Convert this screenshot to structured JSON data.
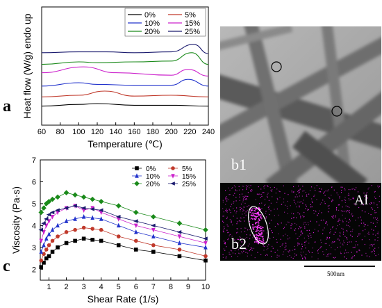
{
  "panels": {
    "a": "a",
    "c": "c",
    "b1": "b1",
    "b2": "b2",
    "al": "Al"
  },
  "scale_bar": "500nm",
  "chart_data": [
    {
      "type": "line",
      "panel": "a",
      "xlabel": "Temperature (℃)",
      "ylabel": "Heat flow (W/g) endo up",
      "xlim": [
        60,
        240
      ],
      "xticks": [
        60,
        80,
        100,
        120,
        140,
        160,
        180,
        200,
        220,
        240
      ],
      "series": [
        {
          "name": "0%",
          "color": "#000000",
          "x": [
            60,
            100,
            120,
            160,
            200,
            240
          ],
          "y": [
            0.2,
            0.4,
            0.5,
            0.3,
            0.3,
            0.2
          ]
        },
        {
          "name": "5%",
          "color": "#c0392b",
          "x": [
            60,
            100,
            128,
            160,
            200,
            240
          ],
          "y": [
            1.3,
            1.5,
            2.0,
            1.4,
            1.5,
            1.3
          ]
        },
        {
          "name": "10%",
          "color": "#2233cc",
          "x": [
            60,
            100,
            120,
            160,
            200,
            218,
            240
          ],
          "y": [
            2.6,
            3.0,
            2.8,
            2.7,
            2.7,
            3.4,
            2.6
          ]
        },
        {
          "name": "15%",
          "color": "#cc22cc",
          "x": [
            60,
            105,
            140,
            200,
            218,
            240
          ],
          "y": [
            4.2,
            4.9,
            4.2,
            3.9,
            4.6,
            3.8
          ]
        },
        {
          "name": "20%",
          "color": "#1a8a1a",
          "x": [
            60,
            100,
            120,
            160,
            200,
            222,
            240
          ],
          "y": [
            5.2,
            5.5,
            5.4,
            5.5,
            5.6,
            6.6,
            5.2
          ]
        },
        {
          "name": "25%",
          "color": "#1a1a6e",
          "x": [
            60,
            100,
            130,
            160,
            200,
            224,
            240
          ],
          "y": [
            6.6,
            6.7,
            6.7,
            6.6,
            6.7,
            7.6,
            6.5
          ]
        }
      ]
    },
    {
      "type": "line",
      "panel": "c",
      "xlabel": "Shear Rate (1/s)",
      "ylabel": "Viscosity (Pa·s)",
      "xlim": [
        0.5,
        10
      ],
      "ylim": [
        1.5,
        7
      ],
      "xticks": [
        1,
        2,
        3,
        4,
        5,
        6,
        7,
        8,
        9,
        10
      ],
      "yticks": [
        2,
        3,
        4,
        5,
        6,
        7
      ],
      "x": [
        0.55,
        0.7,
        0.85,
        1.0,
        1.2,
        1.5,
        2.0,
        2.5,
        3.0,
        3.5,
        4.0,
        5.0,
        6.0,
        7.0,
        8.5,
        10.0
      ],
      "series": [
        {
          "name": "0%",
          "color": "#000000",
          "marker": "square",
          "values": [
            2.1,
            2.3,
            2.5,
            2.6,
            2.8,
            3.0,
            3.2,
            3.3,
            3.4,
            3.35,
            3.3,
            3.1,
            2.9,
            2.8,
            2.6,
            2.4
          ]
        },
        {
          "name": "5%",
          "color": "#c0392b",
          "marker": "circle",
          "values": [
            2.4,
            2.7,
            2.9,
            3.1,
            3.3,
            3.5,
            3.7,
            3.8,
            3.9,
            3.85,
            3.8,
            3.5,
            3.3,
            3.1,
            2.9,
            2.6
          ]
        },
        {
          "name": "10%",
          "color": "#2233cc",
          "marker": "triangle-up",
          "values": [
            2.8,
            3.1,
            3.4,
            3.6,
            3.8,
            4.0,
            4.2,
            4.3,
            4.4,
            4.35,
            4.3,
            4.0,
            3.7,
            3.5,
            3.2,
            3.0
          ]
        },
        {
          "name": "15%",
          "color": "#cc22cc",
          "marker": "triangle-down",
          "values": [
            3.3,
            3.7,
            4.0,
            4.2,
            4.4,
            4.6,
            4.8,
            4.9,
            4.7,
            4.8,
            4.6,
            4.3,
            4.0,
            3.8,
            3.5,
            3.2
          ]
        },
        {
          "name": "20%",
          "color": "#1a8a1a",
          "marker": "diamond",
          "values": [
            4.6,
            4.8,
            5.0,
            5.1,
            5.2,
            5.3,
            5.5,
            5.4,
            5.3,
            5.2,
            5.1,
            4.9,
            4.6,
            4.4,
            4.1,
            3.8
          ]
        },
        {
          "name": "25%",
          "color": "#1a1a6e",
          "marker": "triangle-left",
          "values": [
            3.8,
            4.1,
            4.3,
            4.5,
            4.6,
            4.7,
            4.8,
            4.9,
            4.8,
            4.75,
            4.7,
            4.4,
            4.2,
            4.0,
            3.7,
            3.4
          ]
        }
      ]
    }
  ]
}
